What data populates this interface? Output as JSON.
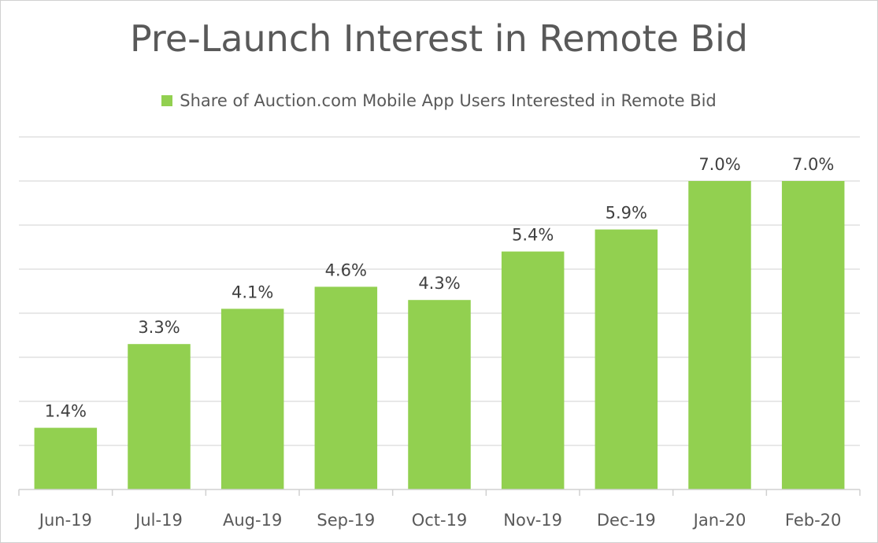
{
  "chart_data": {
    "type": "bar",
    "title": "Pre-Launch Interest in Remote Bid",
    "legend": {
      "position": "top",
      "entries": [
        "Share of Auction.com Mobile App Users Interested in Remote Bid"
      ]
    },
    "categories": [
      "Jun-19",
      "Jul-19",
      "Aug-19",
      "Sep-19",
      "Oct-19",
      "Nov-19",
      "Dec-19",
      "Jan-20",
      "Feb-20"
    ],
    "series": [
      {
        "name": "Share of Auction.com Mobile App Users Interested in Remote Bid",
        "values": [
          1.4,
          3.3,
          4.1,
          4.6,
          4.3,
          5.4,
          5.9,
          7.0,
          7.0
        ],
        "color": "#92d050"
      }
    ],
    "data_labels": [
      "1.4%",
      "3.3%",
      "4.1%",
      "4.6%",
      "4.3%",
      "5.4%",
      "5.9%",
      "7.0%",
      "7.0%"
    ],
    "xlabel": "",
    "ylabel": "",
    "ylim": [
      0,
      8
    ],
    "y_gridlines": [
      0,
      1,
      2,
      3,
      4,
      5,
      6,
      7,
      8
    ],
    "grid": true,
    "y_tick_labels_visible": false
  }
}
